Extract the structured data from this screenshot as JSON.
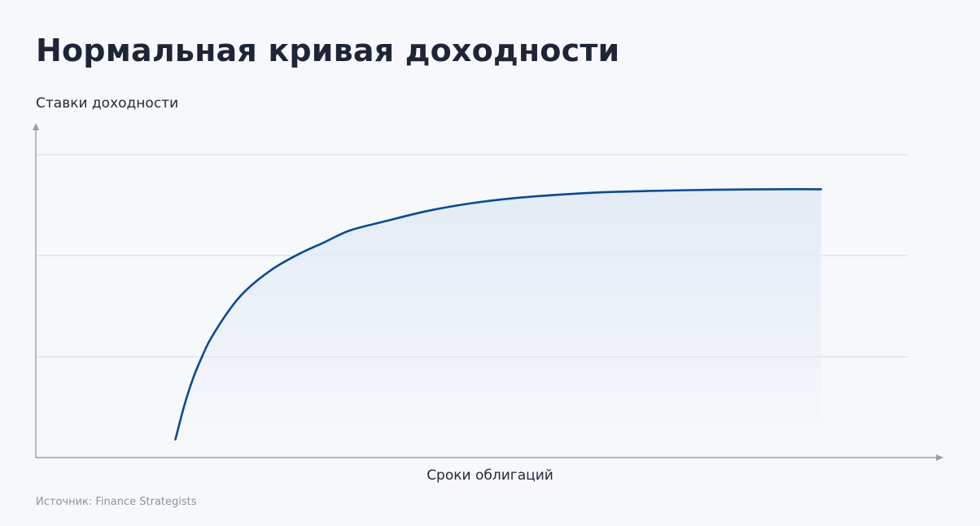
{
  "title": "Нормальная кривая доходности",
  "source": "Источник: Finance Strategists",
  "colors": {
    "curve": "#0b4a94",
    "fill": "#e3ebf6",
    "axis": "#9aa0a8",
    "grid": "#d6dae0",
    "title": "#1d2536"
  },
  "chart_data": {
    "type": "line",
    "ylabel": "Ставки доходности",
    "xlabel": "Сроки облигаций",
    "grid": "horizontal",
    "ticks": false,
    "xlim": [
      0,
      1
    ],
    "ylim": [
      0,
      1
    ],
    "gridlines_y": [
      0.333,
      0.667,
      1.0
    ],
    "series": [
      {
        "values_desc": "curve",
        "x": [
          0.16,
          0.17,
          0.18,
          0.19,
          0.2,
          0.22,
          0.24,
          0.27,
          0.3,
          0.33,
          0.36,
          0.4,
          0.45,
          0.5,
          0.55,
          0.6,
          0.65,
          0.7,
          0.75,
          0.8,
          0.85,
          0.9
        ],
        "y": [
          0.06,
          0.17,
          0.26,
          0.33,
          0.39,
          0.48,
          0.55,
          0.62,
          0.67,
          0.71,
          0.75,
          0.78,
          0.815,
          0.84,
          0.857,
          0.868,
          0.876,
          0.88,
          0.883,
          0.885,
          0.886,
          0.886
        ]
      }
    ]
  }
}
